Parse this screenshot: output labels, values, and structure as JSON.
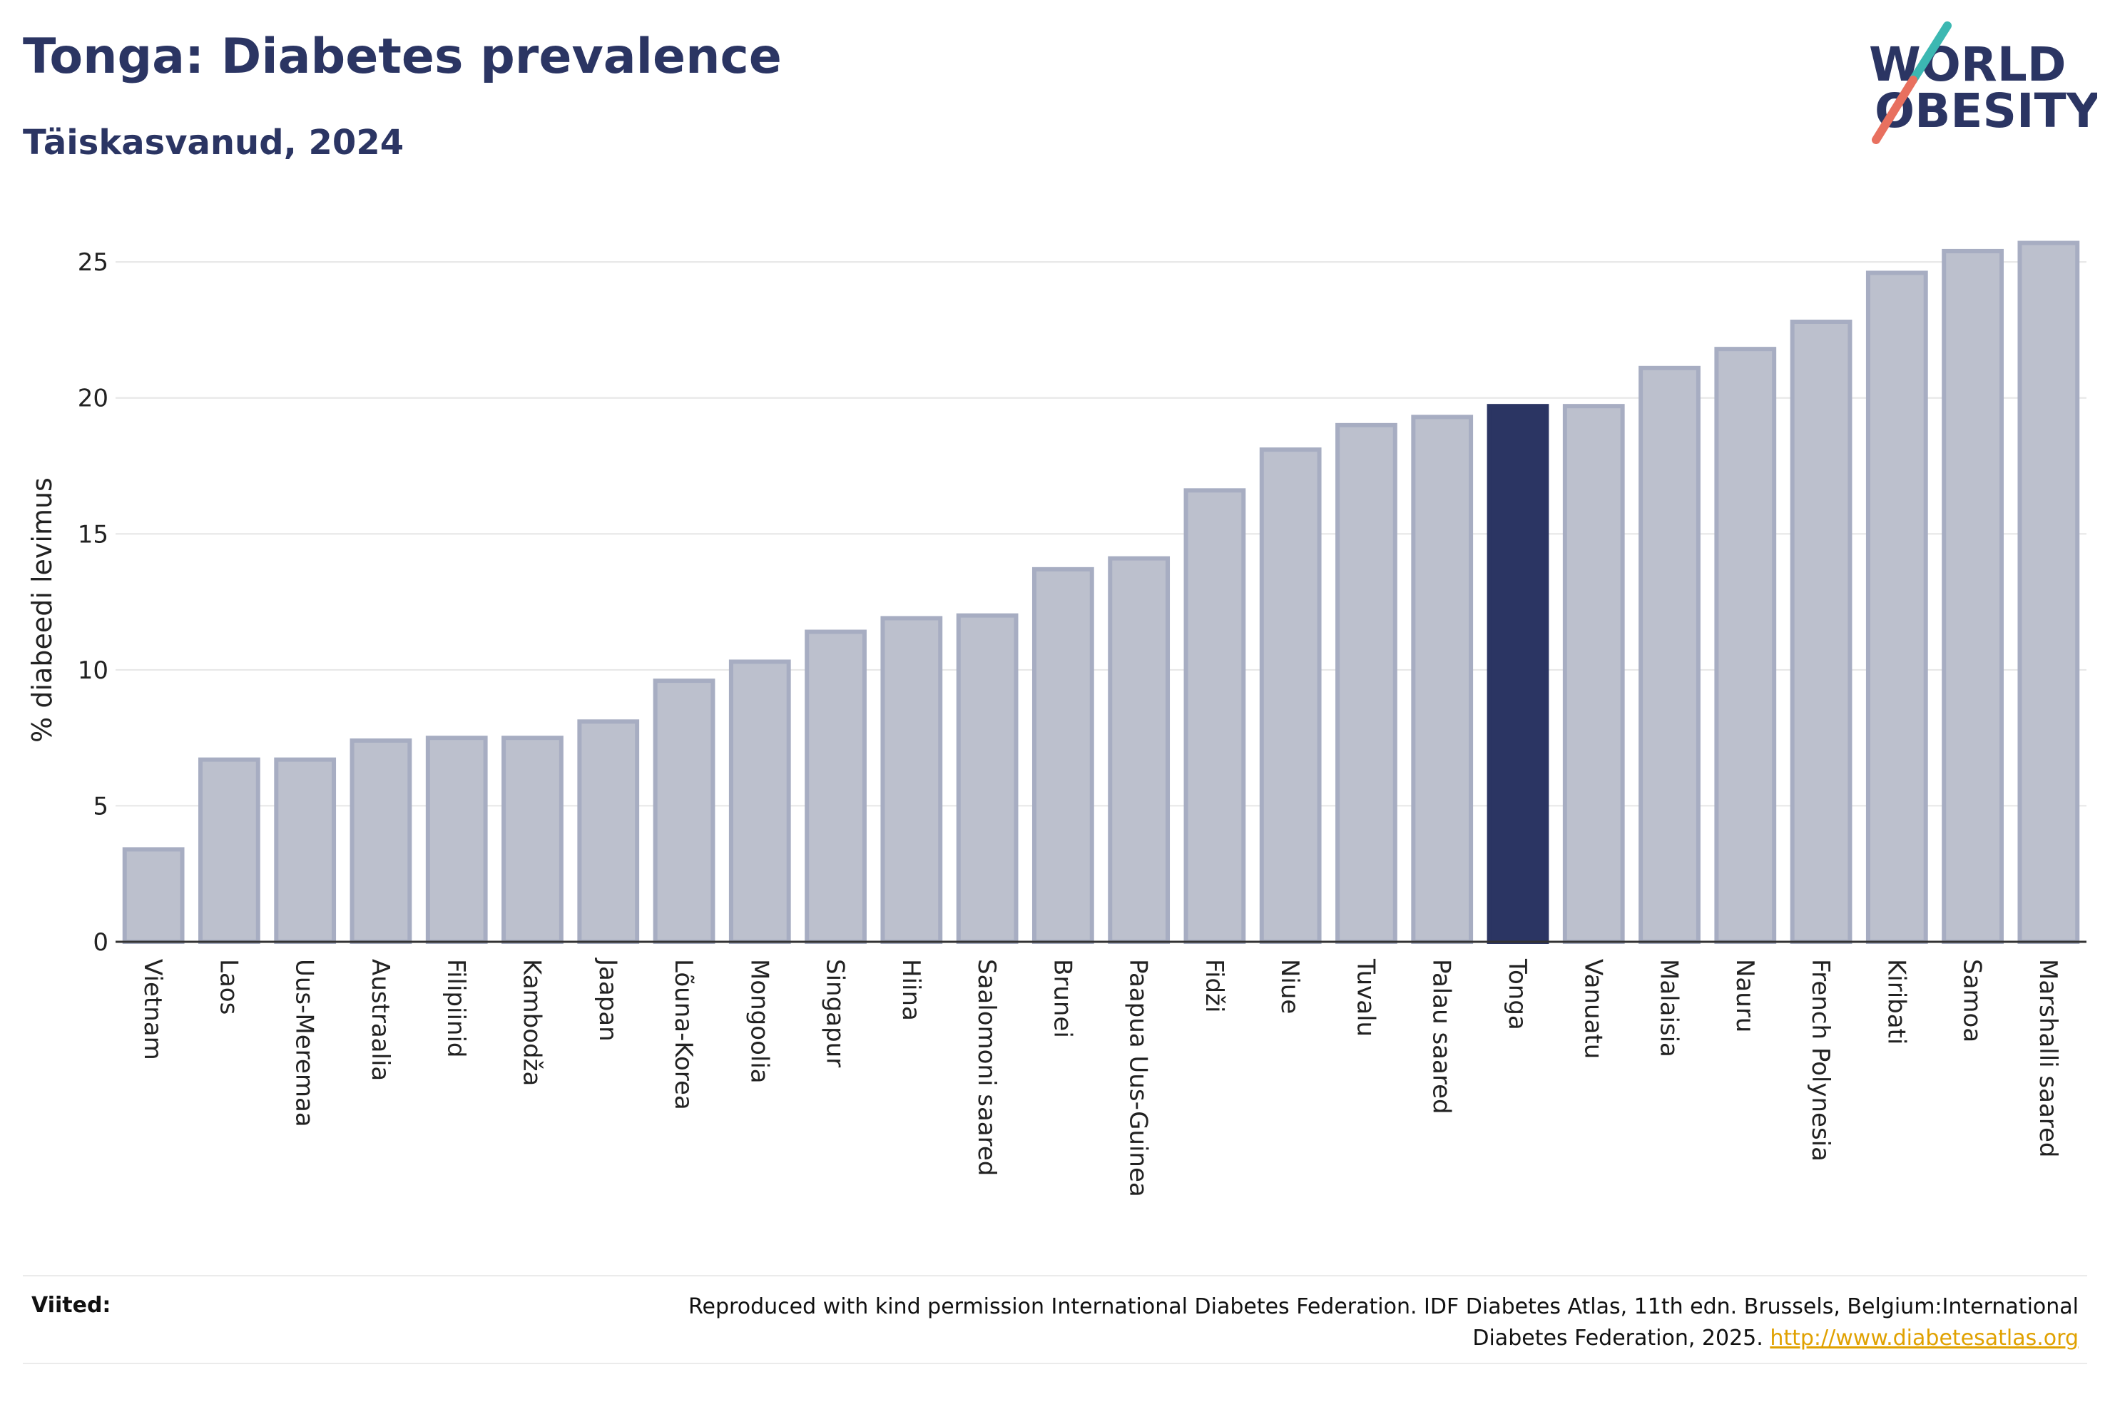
{
  "header": {
    "title": "Tonga: Diabetes prevalence",
    "subtitle": "Täiskasvanud, 2024"
  },
  "logo": {
    "line1": "WORLD",
    "line2": "OBESITY",
    "colors": {
      "text": "#2b3563",
      "slash_top": "#3cb8b2",
      "slash_bottom": "#e8705f"
    }
  },
  "footer": {
    "refs_label": "Viited:",
    "refs_text_line1": "Reproduced with kind permission International Diabetes Federation. IDF Diabetes Atlas, 11th edn. Brussels, Belgium:International",
    "refs_text_line2": "Diabetes Federation, 2025.",
    "refs_link": "http://www.diabetesatlas.org",
    "link_color": "#e0a100"
  },
  "chart_data": {
    "type": "bar",
    "title": "Tonga: Diabetes prevalence",
    "subtitle": "Täiskasvanud, 2024",
    "xlabel": "",
    "ylabel": "% diabeedi levimus",
    "ylim": [
      0,
      26.5
    ],
    "yticks": [
      0,
      5,
      10,
      15,
      20,
      25
    ],
    "grid": true,
    "highlight": "Tonga",
    "colors": {
      "bar": "#bcc0cd",
      "bar_border": "#a7adc2",
      "highlight": "#2b3563"
    },
    "categories": [
      "Vietnam",
      "Laos",
      "Uus-Meremaa",
      "Austraalia",
      "Filipiinid",
      "Kambodža",
      "Jaapan",
      "Lõuna-Korea",
      "Mongoolia",
      "Singapur",
      "Hiina",
      "Saalomoni saared",
      "Brunei",
      "Paapua Uus-Guinea",
      "Fidži",
      "Niue",
      "Tuvalu",
      "Palau saared",
      "Tonga",
      "Vanuatu",
      "Malaisia",
      "Nauru",
      "French Polynesia",
      "Kiribati",
      "Samoa",
      "Marshalli saared"
    ],
    "values": [
      3.4,
      6.7,
      6.7,
      7.4,
      7.5,
      7.5,
      8.1,
      9.6,
      10.3,
      11.4,
      11.9,
      12.0,
      13.7,
      14.1,
      16.6,
      18.1,
      19.0,
      19.3,
      19.7,
      19.7,
      21.1,
      21.8,
      22.8,
      24.6,
      25.4,
      25.7
    ]
  }
}
